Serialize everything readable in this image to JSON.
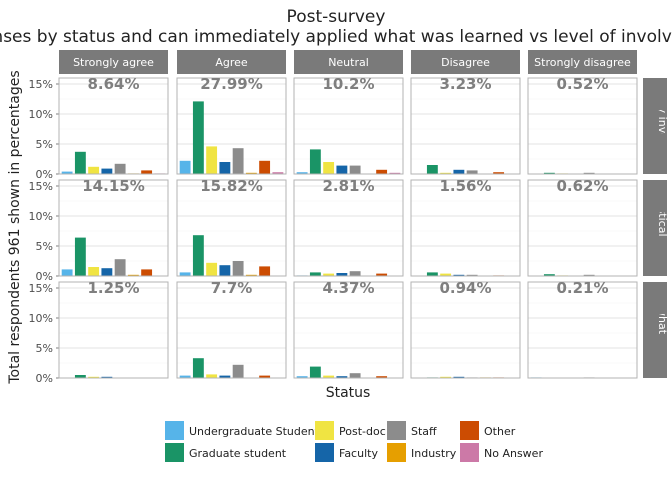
{
  "chart_data": {
    "type": "bar",
    "title": "Post-survey",
    "subtitle": "responses by status and can immediately applied what was learned vs level of involvement",
    "xlabel": "Status",
    "ylabel": "Total respondents 961 shown in percentages",
    "ylim": [
      0,
      16
    ],
    "yticks": [
      0,
      5,
      10,
      15
    ],
    "ytick_labels": [
      "0%",
      "5%",
      "10%",
      "15%"
    ],
    "grid": true,
    "legend_position": "bottom",
    "col_facets": [
      "Strongly agree",
      "Agree",
      "Neutral",
      "Disagree",
      "Strongly disagree"
    ],
    "row_facets": [
      "Very involved",
      "Enthusiastically involved",
      "Somewhat involved"
    ],
    "categories": [
      "Undergraduate Student",
      "Graduate student",
      "Post-doc",
      "Faculty",
      "Staff",
      "Industry",
      "Other",
      "No Answer"
    ],
    "colors": [
      "#56b4e9",
      "#1a9466",
      "#f0e442",
      "#1565a8",
      "#8c8c8c",
      "#e69f00",
      "#cc4c02",
      "#cc79a7"
    ],
    "panel_labels": [
      [
        "8.64%",
        "27.99%",
        "10.2%",
        "3.23%",
        "0.52%"
      ],
      [
        "14.15%",
        "15.82%",
        "2.81%",
        "1.56%",
        "0.62%"
      ],
      [
        "1.25%",
        "7.7%",
        "4.37%",
        "0.94%",
        "0.21%"
      ]
    ],
    "values": [
      [
        [
          0.4,
          3.7,
          1.2,
          0.9,
          1.7,
          0.1,
          0.6,
          0.1
        ],
        [
          2.2,
          12.1,
          4.6,
          2.0,
          4.3,
          0.2,
          2.2,
          0.3
        ],
        [
          0.3,
          4.1,
          2.0,
          1.4,
          1.4,
          0.0,
          0.7,
          0.2
        ],
        [
          0.0,
          1.5,
          0.2,
          0.7,
          0.6,
          0.0,
          0.3,
          0.0
        ],
        [
          0.0,
          0.2,
          0.1,
          0.0,
          0.2,
          0.0,
          0.0,
          0.0
        ]
      ],
      [
        [
          1.1,
          6.4,
          1.5,
          1.3,
          2.8,
          0.2,
          1.1,
          0.0
        ],
        [
          0.6,
          6.8,
          2.2,
          1.8,
          2.5,
          0.2,
          1.6,
          0.0
        ],
        [
          0.1,
          0.6,
          0.4,
          0.5,
          0.8,
          0.0,
          0.4,
          0.0
        ],
        [
          0.0,
          0.6,
          0.4,
          0.2,
          0.2,
          0.0,
          0.1,
          0.0
        ],
        [
          0.0,
          0.3,
          0.1,
          0.0,
          0.2,
          0.0,
          0.0,
          0.0
        ]
      ],
      [
        [
          0.0,
          0.5,
          0.2,
          0.2,
          0.0,
          0.0,
          0.0,
          0.0
        ],
        [
          0.4,
          3.3,
          0.6,
          0.4,
          2.2,
          0.0,
          0.4,
          0.0
        ],
        [
          0.3,
          1.9,
          0.4,
          0.3,
          0.8,
          0.0,
          0.3,
          0.0
        ],
        [
          0.0,
          0.1,
          0.2,
          0.2,
          0.1,
          0.1,
          0.1,
          0.0
        ],
        [
          0.1,
          0.0,
          0.0,
          0.0,
          0.1,
          0.0,
          0.0,
          0.0
        ]
      ]
    ]
  }
}
